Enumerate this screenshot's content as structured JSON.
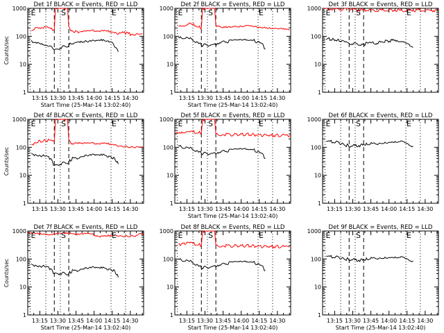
{
  "chart_data": [
    {
      "type": "line",
      "panel": 1,
      "title": "Det 1f BLACK = Events, RED = LLD",
      "xlabel": "Start Time (25-Mar-14 13:02:40)",
      "ylabel": "Counts/sec",
      "yscale": "log",
      "ylim": [
        1,
        1000
      ],
      "yticks": [
        1,
        10,
        100,
        1000
      ],
      "ytick_labels": [
        "1",
        "10",
        "100",
        "1000"
      ],
      "xlim": [
        "13:05",
        "14:41"
      ],
      "xticks": [
        "13:15",
        "13:30",
        "13:45",
        "14:00",
        "14:15",
        "14:30"
      ],
      "vlines_dotted": [
        "13:07",
        "13:20",
        "13:32",
        "14:14",
        "14:26"
      ],
      "vlines_dashed": [
        "13:27",
        "13:39"
      ],
      "flags": [
        {
          "label": "E",
          "x": "13:07"
        },
        {
          "label": "S",
          "x": "13:32"
        },
        {
          "label": "E",
          "x": "14:14"
        }
      ],
      "series": [
        {
          "color": "#ff0000",
          "x": [
            "13:08",
            "13:12",
            "13:18",
            "13:24",
            "13:27",
            "13:28",
            "13:30",
            "13:35",
            "13:38",
            "13:39",
            "13:40",
            "13:43",
            "13:50",
            "14:00",
            "14:10",
            "14:15",
            "14:20",
            "14:26",
            "14:30",
            "14:35",
            "14:40"
          ],
          "y": [
            160,
            200,
            210,
            190,
            170,
            1000,
            1000,
            1000,
            1000,
            200,
            170,
            145,
            140,
            160,
            170,
            150,
            130,
            130,
            120,
            125,
            125
          ]
        },
        {
          "color": "#000000",
          "x": [
            "13:08",
            "13:10",
            "13:15",
            "13:20",
            "13:25",
            "13:27",
            "13:39",
            "13:41",
            "13:45",
            "13:55",
            "14:05",
            "14:10",
            "14:15",
            "14:20"
          ],
          "y": [
            70,
            60,
            52,
            45,
            40,
            32,
            48,
            55,
            58,
            62,
            70,
            65,
            55,
            28
          ]
        }
      ]
    },
    {
      "type": "line",
      "panel": 2,
      "title": "Det 2f BLACK = Events, RED = LLD",
      "xlabel": "Start Time (25-Mar-14 13:02:40)",
      "ylabel": "",
      "yscale": "log",
      "ylim": [
        1,
        1000
      ],
      "yticks": [
        1,
        10,
        100,
        1000
      ],
      "ytick_labels": [
        "1",
        "10",
        "100",
        "1000"
      ],
      "xlim": [
        "13:05",
        "14:41"
      ],
      "xticks": [
        "13:15",
        "13:30",
        "13:45",
        "14:00",
        "14:15",
        "14:30"
      ],
      "vlines_dotted": [
        "13:07",
        "13:20",
        "13:32",
        "14:14",
        "14:26"
      ],
      "vlines_dashed": [
        "13:27",
        "13:39"
      ],
      "flags": [
        {
          "label": "E",
          "x": "13:07"
        },
        {
          "label": "S",
          "x": "13:32"
        },
        {
          "label": "E",
          "x": "14:14"
        }
      ],
      "series": [
        {
          "color": "#ff0000",
          "x": [
            "13:08",
            "13:12",
            "13:18",
            "13:24",
            "13:27",
            "13:28",
            "13:30",
            "13:35",
            "13:38",
            "13:39",
            "13:40",
            "13:45",
            "13:55",
            "14:05",
            "14:15",
            "14:25",
            "14:35",
            "14:40"
          ],
          "y": [
            220,
            250,
            270,
            230,
            200,
            1000,
            1000,
            1000,
            1000,
            260,
            220,
            200,
            210,
            220,
            200,
            180,
            170,
            165
          ]
        },
        {
          "color": "#000000",
          "x": [
            "13:08",
            "13:12",
            "13:18",
            "13:24",
            "13:27",
            "13:39",
            "13:42",
            "13:50",
            "14:00",
            "14:10",
            "14:17",
            "14:20"
          ],
          "y": [
            85,
            90,
            80,
            62,
            48,
            50,
            60,
            65,
            72,
            70,
            60,
            35
          ]
        }
      ]
    },
    {
      "type": "line",
      "panel": 3,
      "title": "Det 3f BLACK = Events, RED = LLD",
      "xlabel": "",
      "ylabel": "",
      "yscale": "log",
      "ylim": [
        1,
        1000
      ],
      "yticks": [
        1,
        10,
        100,
        1000
      ],
      "ytick_labels": [
        "1",
        "10",
        "100",
        "1000"
      ],
      "xlim": [
        "13:05",
        "14:41"
      ],
      "xticks": [],
      "vlines_dotted": [
        "13:07",
        "13:20",
        "13:32",
        "14:14",
        "14:26"
      ],
      "vlines_dashed": [
        "13:27",
        "13:39"
      ],
      "flags": [
        {
          "label": "E",
          "x": "13:07"
        },
        {
          "label": "S",
          "x": "13:32"
        },
        {
          "label": "E",
          "x": "14:14"
        }
      ],
      "series": [
        {
          "color": "#ff0000",
          "x": [
            "13:06",
            "13:27",
            "13:39",
            "14:41"
          ],
          "y": [
            950,
            950,
            850,
            850
          ]
        },
        {
          "color": "#000000",
          "x": [
            "13:08",
            "13:15",
            "13:22",
            "13:27",
            "13:39",
            "13:41",
            "13:50",
            "14:05",
            "14:15",
            "14:20"
          ],
          "y": [
            85,
            75,
            65,
            55,
            50,
            55,
            58,
            75,
            62,
            40
          ]
        }
      ]
    },
    {
      "type": "line",
      "panel": 4,
      "title": "Det 4f BLACK = Events, RED = LLD",
      "xlabel": "",
      "ylabel": "Counts/sec",
      "yscale": "log",
      "ylim": [
        1,
        1000
      ],
      "yticks": [
        1,
        10,
        100,
        1000
      ],
      "ytick_labels": [
        "1",
        "10",
        "100",
        "1000"
      ],
      "xlim": [
        "13:05",
        "14:41"
      ],
      "xticks": [
        "13:15",
        "13:30",
        "13:45",
        "14:00",
        "14:15",
        "14:30"
      ],
      "vlines_dotted": [
        "13:07",
        "13:20",
        "13:32",
        "14:14",
        "14:26"
      ],
      "vlines_dashed": [
        "13:27",
        "13:39"
      ],
      "flags": [
        {
          "label": "E",
          "x": "13:07"
        },
        {
          "label": "S",
          "x": "13:32"
        },
        {
          "label": "E",
          "x": "14:14"
        }
      ],
      "series": [
        {
          "color": "#ff0000",
          "x": [
            "13:08",
            "13:15",
            "13:22",
            "13:27",
            "13:28",
            "13:30",
            "13:35",
            "13:38",
            "13:39",
            "13:41",
            "13:50",
            "14:00",
            "14:10",
            "14:20",
            "14:30",
            "14:40"
          ],
          "y": [
            130,
            160,
            180,
            150,
            1000,
            1000,
            1000,
            1000,
            170,
            140,
            130,
            140,
            150,
            120,
            110,
            105
          ]
        },
        {
          "color": "#000000",
          "x": [
            "13:08",
            "13:12",
            "13:18",
            "13:24",
            "13:27",
            "13:39",
            "13:42",
            "13:50",
            "14:00",
            "14:10",
            "14:17",
            "14:20"
          ],
          "y": [
            60,
            55,
            50,
            40,
            22,
            30,
            40,
            45,
            52,
            50,
            40,
            25
          ]
        }
      ]
    },
    {
      "type": "line",
      "panel": 5,
      "title": "Det 5f BLACK = Events, RED = LLD",
      "xlabel": "Start Time (25-Mar-14 13:02:40)",
      "ylabel": "",
      "yscale": "log",
      "ylim": [
        1,
        1000
      ],
      "yticks": [
        1,
        10,
        100,
        1000
      ],
      "ytick_labels": [
        "1",
        "10",
        "100",
        "1000"
      ],
      "xlim": [
        "13:05",
        "14:41"
      ],
      "xticks": [
        "13:15",
        "13:30",
        "13:45",
        "14:00",
        "14:15",
        "14:30"
      ],
      "vlines_dotted": [
        "13:07",
        "13:20",
        "13:32",
        "14:14",
        "14:26"
      ],
      "vlines_dashed": [
        "13:27",
        "13:39"
      ],
      "flags": [
        {
          "label": "E",
          "x": "13:07"
        },
        {
          "label": "S",
          "x": "13:32"
        },
        {
          "label": "E",
          "x": "14:14"
        }
      ],
      "series": [
        {
          "color": "#ff0000",
          "x": [
            "13:05",
            "13:15",
            "13:24",
            "13:27",
            "13:28",
            "13:30",
            "13:35",
            "13:38",
            "13:39",
            "13:41",
            "13:50",
            "14:05",
            "14:20",
            "14:35",
            "14:41"
          ],
          "y": [
            300,
            330,
            350,
            330,
            1000,
            1000,
            1000,
            1000,
            320,
            290,
            280,
            290,
            270,
            260,
            260
          ]
        },
        {
          "color": "#000000",
          "x": [
            "13:08",
            "13:12",
            "13:18",
            "13:24",
            "13:27",
            "13:39",
            "13:42",
            "13:50",
            "14:00",
            "14:10",
            "14:17",
            "14:20"
          ],
          "y": [
            110,
            100,
            90,
            75,
            60,
            60,
            68,
            75,
            85,
            80,
            65,
            40
          ]
        }
      ]
    },
    {
      "type": "line",
      "panel": 6,
      "title": "Det 6f BLACK = Events, RED = LLD",
      "xlabel": "",
      "ylabel": "",
      "yscale": "log",
      "ylim": [
        1,
        1000
      ],
      "yticks": [
        1,
        10,
        100,
        1000
      ],
      "ytick_labels": [
        "1",
        "10",
        "100",
        "1000"
      ],
      "xlim": [
        "13:05",
        "14:41"
      ],
      "xticks": [
        "13:15",
        "13:30",
        "13:45",
        "14:00",
        "14:15",
        "14:30"
      ],
      "vlines_dotted": [
        "13:07",
        "13:20",
        "13:32",
        "14:14",
        "14:26"
      ],
      "vlines_dashed": [
        "13:27",
        "13:39"
      ],
      "flags": [
        {
          "label": "E",
          "x": "13:07"
        },
        {
          "label": "S",
          "x": "13:32"
        },
        {
          "label": "E",
          "x": "14:14"
        }
      ],
      "series": [
        {
          "color": "#000000",
          "x": [
            "13:08",
            "13:12",
            "13:20",
            "13:27",
            "13:39",
            "13:42",
            "13:50",
            "14:00",
            "14:10",
            "14:15",
            "14:20"
          ],
          "y": [
            170,
            160,
            140,
            110,
            120,
            130,
            140,
            160,
            175,
            150,
            110
          ]
        }
      ]
    },
    {
      "type": "line",
      "panel": 7,
      "title": "Det 7f BLACK = Events, RED = LLD",
      "xlabel": "Start Time (25-Mar-14 13:02:40)",
      "ylabel": "Counts/sec",
      "yscale": "log",
      "ylim": [
        1,
        1000
      ],
      "yticks": [
        1,
        10,
        100,
        1000
      ],
      "ytick_labels": [
        "1",
        "10",
        "100",
        "1000"
      ],
      "xlim": [
        "13:05",
        "14:41"
      ],
      "xticks": [
        "13:15",
        "13:30",
        "13:45",
        "14:00",
        "14:15",
        "14:30"
      ],
      "vlines_dotted": [
        "13:07",
        "13:20",
        "13:32",
        "14:14",
        "14:26"
      ],
      "vlines_dashed": [
        "13:27",
        "13:39"
      ],
      "flags": [
        {
          "label": "E",
          "x": "13:07"
        },
        {
          "label": "S",
          "x": "13:32"
        },
        {
          "label": "E",
          "x": "14:14"
        }
      ],
      "series": [
        {
          "color": "#ff0000",
          "x": [
            "13:05",
            "13:15",
            "13:25",
            "13:35",
            "13:45",
            "13:55",
            "14:05",
            "14:15",
            "14:25",
            "14:35",
            "14:41"
          ],
          "y": [
            800,
            760,
            700,
            800,
            720,
            780,
            680,
            750,
            700,
            720,
            760
          ]
        },
        {
          "color": "#000000",
          "x": [
            "13:08",
            "13:12",
            "13:18",
            "13:24",
            "13:27",
            "13:39",
            "13:42",
            "13:50",
            "14:00",
            "14:10",
            "14:17",
            "14:20"
          ],
          "y": [
            65,
            60,
            55,
            45,
            30,
            30,
            38,
            42,
            48,
            45,
            38,
            22
          ]
        }
      ]
    },
    {
      "type": "line",
      "panel": 8,
      "title": "Det 8f BLACK = Events, RED = LLD",
      "xlabel": "Start Time (25-Mar-14 13:02:40)",
      "ylabel": "",
      "yscale": "log",
      "ylim": [
        1,
        1000
      ],
      "yticks": [
        1,
        10,
        100,
        1000
      ],
      "ytick_labels": [
        "1",
        "10",
        "100",
        "1000"
      ],
      "xlim": [
        "13:05",
        "14:41"
      ],
      "xticks": [
        "13:15",
        "13:30",
        "13:45",
        "14:00",
        "14:15",
        "14:30"
      ],
      "vlines_dotted": [
        "13:07",
        "13:20",
        "13:32",
        "14:14",
        "14:26"
      ],
      "vlines_dashed": [
        "13:27",
        "13:39"
      ],
      "flags": [
        {
          "label": "E",
          "x": "13:07"
        },
        {
          "label": "S",
          "x": "13:32"
        },
        {
          "label": "E",
          "x": "14:14"
        }
      ],
      "series": [
        {
          "color": "#ff0000",
          "x": [
            "13:08",
            "13:15",
            "13:24",
            "13:27",
            "13:28",
            "13:30",
            "13:35",
            "13:38",
            "13:39",
            "13:41",
            "13:50",
            "14:05",
            "14:20",
            "14:35",
            "14:40"
          ],
          "y": [
            320,
            360,
            340,
            310,
            1000,
            1000,
            1000,
            1000,
            330,
            300,
            290,
            300,
            280,
            270,
            265
          ]
        },
        {
          "color": "#000000",
          "x": [
            "13:08",
            "13:12",
            "13:18",
            "13:24",
            "13:27",
            "13:39",
            "13:42",
            "13:50",
            "14:00",
            "14:10",
            "14:17",
            "14:20"
          ],
          "y": [
            95,
            90,
            80,
            62,
            48,
            55,
            62,
            70,
            78,
            75,
            62,
            38
          ]
        }
      ]
    },
    {
      "type": "line",
      "panel": 9,
      "title": "Det 9f BLACK = Events, RED = LLD",
      "xlabel": "Start Time (25-Mar-14 13:02:40)",
      "ylabel": "",
      "yscale": "log",
      "ylim": [
        1,
        1000
      ],
      "yticks": [
        1,
        10,
        100,
        1000
      ],
      "ytick_labels": [
        "1",
        "10",
        "100",
        "1000"
      ],
      "xlim": [
        "13:05",
        "14:41"
      ],
      "xticks": [
        "13:15",
        "13:30",
        "13:45",
        "14:00",
        "14:15",
        "14:30"
      ],
      "vlines_dotted": [
        "13:07",
        "13:20",
        "13:32",
        "14:14",
        "14:26"
      ],
      "vlines_dashed": [
        "13:27",
        "13:39"
      ],
      "flags": [
        {
          "label": "E",
          "x": "13:07"
        },
        {
          "label": "S",
          "x": "13:32"
        },
        {
          "label": "E",
          "x": "14:14"
        }
      ],
      "series": [
        {
          "color": "#000000",
          "x": [
            "13:08",
            "13:12",
            "13:20",
            "13:27",
            "13:39",
            "13:42",
            "13:50",
            "14:00",
            "14:10",
            "14:15",
            "14:20"
          ],
          "y": [
            130,
            120,
            110,
            95,
            90,
            100,
            110,
            120,
            125,
            110,
            85
          ]
        }
      ]
    }
  ]
}
